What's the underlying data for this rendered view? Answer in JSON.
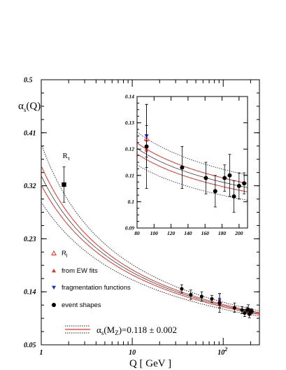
{
  "chart_data": [
    {
      "type": "scatter",
      "title": "",
      "xlabel": "Q [ GeV ]",
      "ylabel": "αs(Q)",
      "xscale": "log",
      "xlim": [
        1,
        250
      ],
      "ylim": [
        0.05,
        0.5
      ],
      "yticks": [
        "0.5",
        "0.41",
        "0.32",
        "0.23",
        "0.14",
        "0.05"
      ],
      "xticks": [
        "1",
        "10",
        "10^2"
      ],
      "annotation": "Rτ",
      "fit": {
        "label": "αs(MZ)=0.118 ± 0.002",
        "alpha_mz": 0.118,
        "uncertainty": 0.002,
        "central_color": "#e8302a",
        "band_color": "#222222"
      },
      "series": [
        {
          "name": "Rl",
          "marker": "triangle-up-open",
          "color": "#e8302a",
          "points": [
            {
              "x": 91.2,
              "y": 0.124,
              "err": 0.005
            }
          ]
        },
        {
          "name": "from EW fits",
          "marker": "triangle-up-filled",
          "color": "#e8302a",
          "points": [
            {
              "x": 91.2,
              "y": 0.12,
              "err": 0.003
            }
          ]
        },
        {
          "name": "fragmentation functions",
          "marker": "triangle-down-filled",
          "color": "#1f2ad6",
          "points": [
            {
              "x": 91.2,
              "y": 0.125,
              "err": 0.012
            }
          ]
        },
        {
          "name": "event shapes",
          "marker": "circle-filled",
          "color": "#000000",
          "points": [
            {
              "x": 35,
              "y": 0.145,
              "err": 0.007
            },
            {
              "x": 44,
              "y": 0.135,
              "err": 0.008
            },
            {
              "x": 58,
              "y": 0.132,
              "err": 0.008
            },
            {
              "x": 75,
              "y": 0.128,
              "err": 0.006
            },
            {
              "x": 91.2,
              "y": 0.121,
              "err": 0.016
            },
            {
              "x": 133,
              "y": 0.113,
              "err": 0.008
            },
            {
              "x": 161,
              "y": 0.109,
              "err": 0.006
            },
            {
              "x": 172,
              "y": 0.104,
              "err": 0.006
            },
            {
              "x": 183,
              "y": 0.109,
              "err": 0.005
            },
            {
              "x": 189,
              "y": 0.11,
              "err": 0.008
            },
            {
              "x": 194,
              "y": 0.102,
              "err": 0.006
            },
            {
              "x": 200,
              "y": 0.106,
              "err": 0.005
            },
            {
              "x": 206,
              "y": 0.107,
              "err": 0.004
            }
          ]
        },
        {
          "name": "Rτ",
          "marker": "square-filled",
          "color": "#000000",
          "points": [
            {
              "x": 1.777,
              "y": 0.322,
              "err": 0.03
            }
          ]
        }
      ],
      "legend": [
        {
          "label": "R",
          "sub": "l",
          "marker": "triangle-up-open",
          "color": "#e8302a"
        },
        {
          "label": "from EW fits",
          "sub": "",
          "marker": "triangle-up-filled",
          "color": "#e8302a"
        },
        {
          "label": "fragmentation functions",
          "sub": "",
          "marker": "triangle-down-filled",
          "color": "#1f2ad6"
        },
        {
          "label": "event shapes",
          "sub": "",
          "marker": "circle-filled",
          "color": "#000000"
        }
      ]
    },
    {
      "type": "scatter",
      "title": "",
      "inset": true,
      "xlim": [
        80,
        210
      ],
      "ylim": [
        0.09,
        0.14
      ],
      "xticks": [
        "80",
        "100",
        "120",
        "140",
        "160",
        "180",
        "200"
      ],
      "yticks": [
        "0.09",
        "0.1",
        "0.11",
        "0.12",
        "0.13",
        "0.14"
      ],
      "note": "zoom of main panel data over 80–210 GeV"
    }
  ]
}
